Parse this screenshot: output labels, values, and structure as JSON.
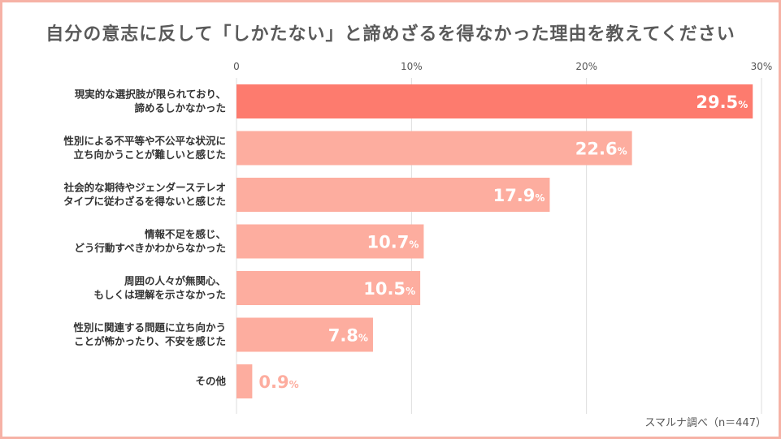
{
  "chart_data": {
    "type": "bar",
    "orientation": "horizontal",
    "title": "自分の意志に反して「しかたない」と諦めざるを得なかった理由を教えてください",
    "categories": [
      [
        "現実的な選択肢が限られており、",
        "諦めるしかなかった"
      ],
      [
        "性別による不平等や不公平な状況に",
        "立ち向かうことが難しいと感じた"
      ],
      [
        "社会的な期待やジェンダーステレオ",
        "タイプに従わざるを得ないと感じた"
      ],
      [
        "情報不足を感じ、",
        "どう行動すべきかわからなかった"
      ],
      [
        "周囲の人々が無関心、",
        "もしくは理解を示さなかった"
      ],
      [
        "性別に関連する問題に立ち向かう",
        "ことが怖かったり、不安を感じた"
      ],
      [
        "その他"
      ]
    ],
    "values": [
      29.5,
      22.6,
      17.9,
      10.7,
      10.5,
      7.8,
      0.9
    ],
    "value_unit": "%",
    "xlim": [
      0,
      30
    ],
    "ticks": [
      0,
      10,
      20,
      30
    ],
    "tick_labels": [
      "0",
      "10%",
      "20%",
      "30%"
    ],
    "grid": true,
    "source": "スマルナ調べ（n＝447）",
    "colors": {
      "highlight": "#fd7b6e",
      "bar": "#fdad9f",
      "label_inside": "#ffffff",
      "label_outside": "#fdad9f",
      "grid": "#dddddd",
      "border": "#f6b2a6"
    }
  }
}
